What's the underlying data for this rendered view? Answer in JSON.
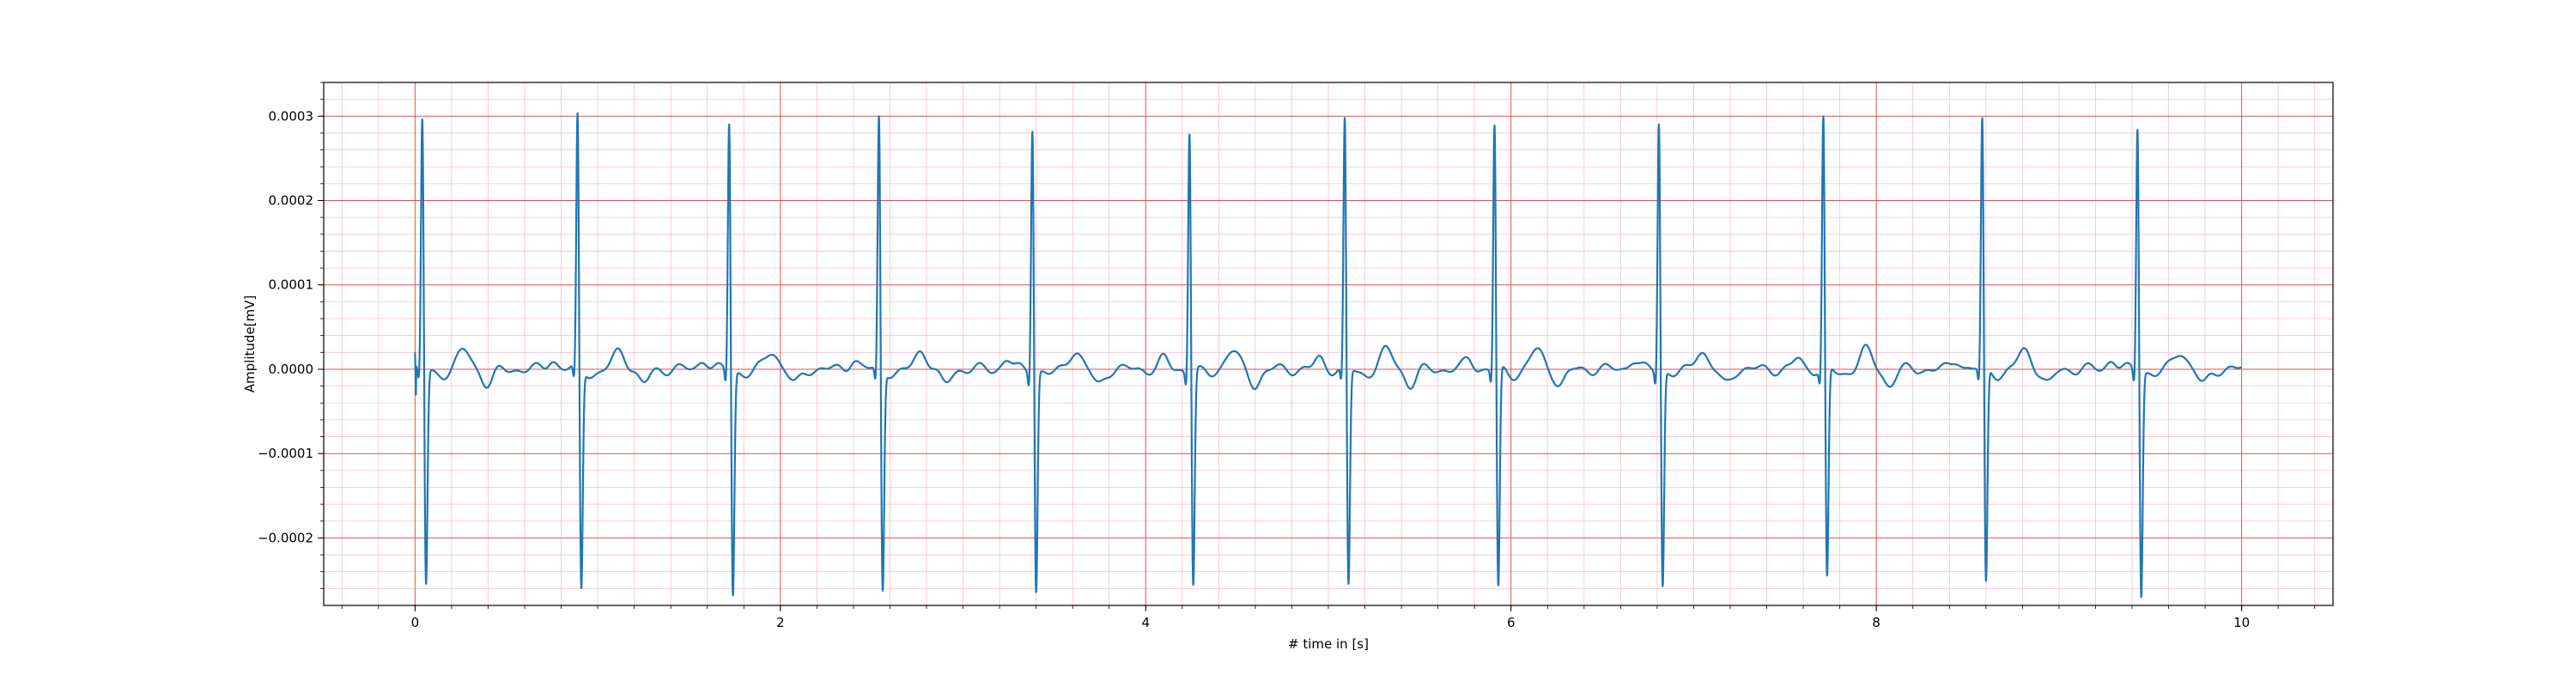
{
  "chart_data": {
    "type": "line",
    "title": "",
    "xlabel": "# time in [s]",
    "ylabel": "Amplitude[mV]",
    "xlim": [
      -0.5,
      10.5
    ],
    "ylim": [
      -0.00028,
      0.00034
    ],
    "x_ticks": [
      0,
      2,
      4,
      6,
      8,
      10
    ],
    "x_tick_labels": [
      "0",
      "2",
      "4",
      "6",
      "8",
      "10"
    ],
    "y_ticks": [
      -0.0002,
      -0.0001,
      0.0,
      0.0001,
      0.0002,
      0.0003
    ],
    "y_tick_labels": [
      "−0.0002",
      "−0.0001",
      "0.0000",
      "0.0001",
      "0.0002",
      "0.0003"
    ],
    "grid": {
      "major": true,
      "minor": true,
      "major_color": "#e05050",
      "minor_color": "#f4c0cc"
    },
    "series": [
      {
        "color": "#1f77b4",
        "beats": [
          0.04,
          0.89,
          1.72,
          2.54,
          3.38,
          4.24,
          5.09,
          5.91,
          6.81,
          7.71,
          8.58,
          9.43
        ],
        "r_peaks": [
          0.000305,
          0.00031,
          0.000305,
          0.00031,
          0.0003,
          0.000295,
          0.000305,
          0.0003,
          0.000305,
          0.000308,
          0.000305,
          0.0003
        ],
        "s_troughs": [
          -0.00024,
          -0.000245,
          -0.00025,
          -0.000245,
          -0.000245,
          -0.000238,
          -0.000242,
          -0.000245,
          -0.00024,
          -0.000235,
          -0.00024,
          -0.00025
        ],
        "x_start": 0.0,
        "x_end": 10.0
      }
    ]
  }
}
